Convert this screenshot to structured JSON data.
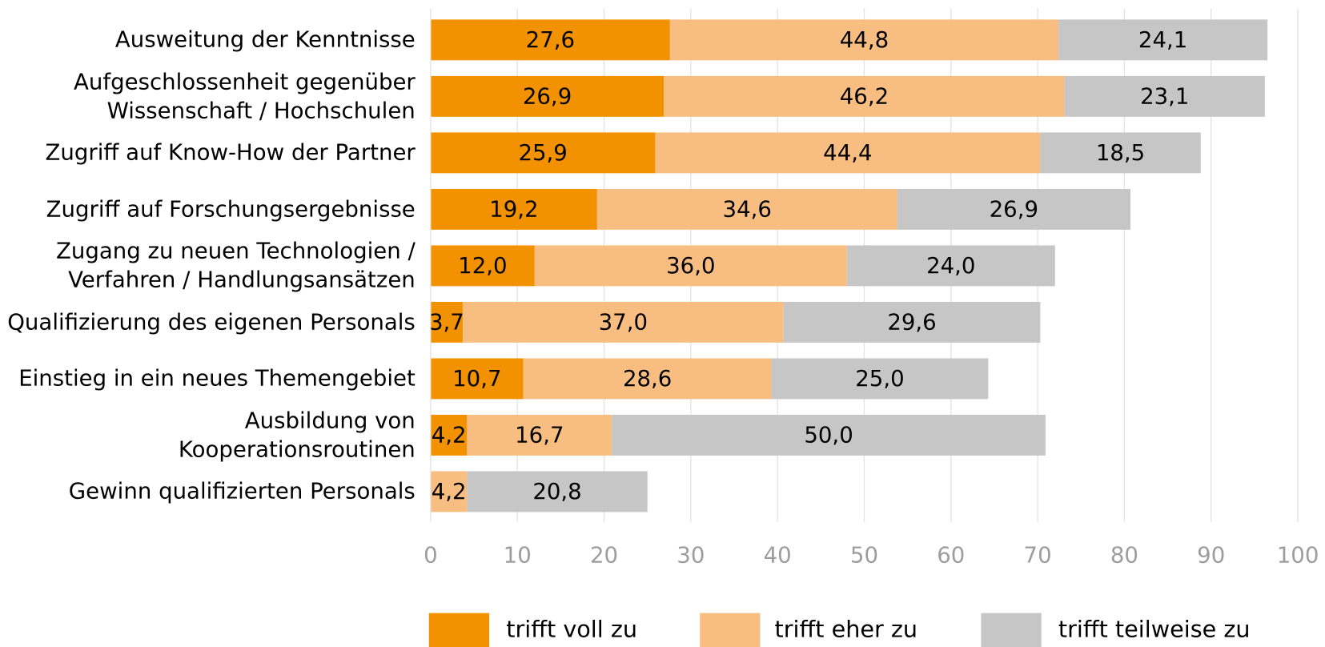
{
  "chart_data": {
    "type": "stacked_barh",
    "categories": [
      "Ausweitung der Kenntnisse",
      "Aufgeschlossenheit gegenüber\nWissenschaft / Hochschulen",
      "Zugriff auf Know-How der Partner",
      "Zugriff auf Forschungsergebnisse",
      "Zugang zu neuen Technologien /\nVerfahren / Handlungsansätzen",
      "Qualifizierung des eigenen Personals",
      "Einstieg in ein neues Themengebiet",
      "Ausbildung von\nKooperationsroutinen",
      "Gewinn qualifizierten Personals"
    ],
    "series": [
      {
        "name": "trifft voll zu",
        "color": "#f39200",
        "values": [
          27.6,
          26.9,
          25.9,
          19.2,
          12.0,
          3.7,
          10.7,
          4.2,
          null
        ],
        "value_labels": [
          "27,6",
          "26,9",
          "25,9",
          "19,2",
          "12,0",
          "3,7",
          "10,7",
          "4,2",
          null
        ]
      },
      {
        "name": "trifft eher zu",
        "color": "#f8bd80",
        "values": [
          44.8,
          46.2,
          44.4,
          34.6,
          36.0,
          37.0,
          28.6,
          16.7,
          4.2
        ],
        "value_labels": [
          "44,8",
          "46,2",
          "44,4",
          "34,6",
          "36,0",
          "37,0",
          "28,6",
          "16,7",
          "4,2"
        ]
      },
      {
        "name": "trifft teilweise zu",
        "color": "#c6c6c6",
        "values": [
          24.1,
          23.1,
          18.5,
          26.9,
          24.0,
          29.6,
          25.0,
          50.0,
          20.8
        ],
        "value_labels": [
          "24,1",
          "23,1",
          "18,5",
          "26,9",
          "24,0",
          "29,6",
          "25,0",
          "50,0",
          "20,8"
        ]
      }
    ],
    "xlim": [
      0,
      100
    ],
    "xticks": [
      0,
      10,
      20,
      30,
      40,
      50,
      60,
      70,
      80,
      90,
      100
    ],
    "grid": true,
    "legend": "bottom"
  }
}
